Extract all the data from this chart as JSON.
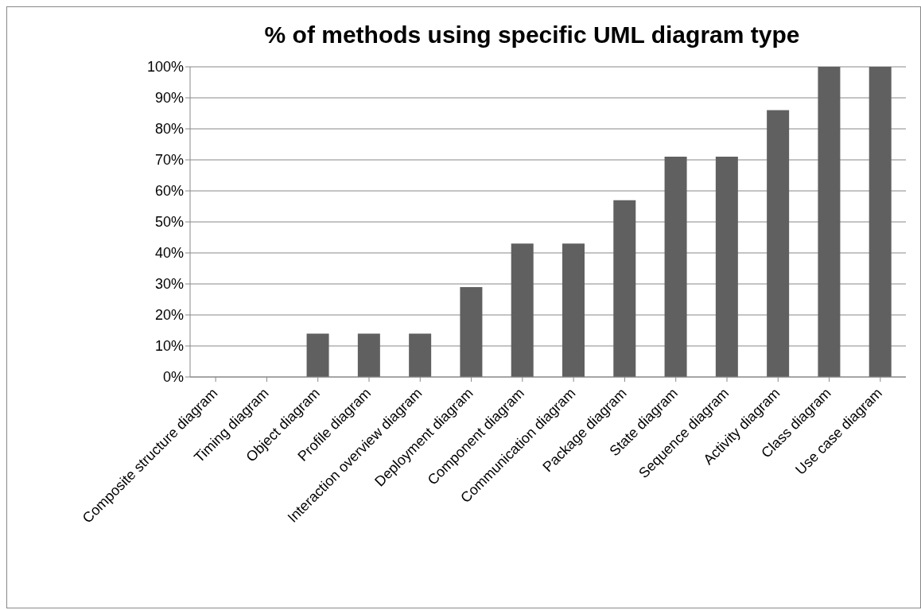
{
  "chart_data": {
    "type": "bar",
    "title": "% of methods using specific UML diagram type",
    "categories": [
      "Composite structure diagram",
      "Timing diagram",
      "Object diagram",
      "Profile diagram",
      "Interaction overview diagram",
      "Deployment diagram",
      "Component diagram",
      "Communication diagram",
      "Package diagram",
      "State diagram",
      "Sequence diagram",
      "Activity diagram",
      "Class diagram",
      "Use case diagram"
    ],
    "values": [
      0,
      0,
      14,
      14,
      14,
      29,
      43,
      43,
      57,
      71,
      71,
      86,
      100,
      100
    ],
    "color": "#606060",
    "ylim": [
      0,
      100
    ],
    "yticks": [
      {
        "value": 0,
        "label": "0%"
      },
      {
        "value": 10,
        "label": "10%"
      },
      {
        "value": 20,
        "label": "20%"
      },
      {
        "value": 30,
        "label": "30%"
      },
      {
        "value": 40,
        "label": "40%"
      },
      {
        "value": 50,
        "label": "50%"
      },
      {
        "value": 60,
        "label": "60%"
      },
      {
        "value": 70,
        "label": "70%"
      },
      {
        "value": 80,
        "label": "80%"
      },
      {
        "value": 90,
        "label": "90%"
      },
      {
        "value": 100,
        "label": "100%"
      }
    ],
    "grid": "y",
    "legend": false
  }
}
